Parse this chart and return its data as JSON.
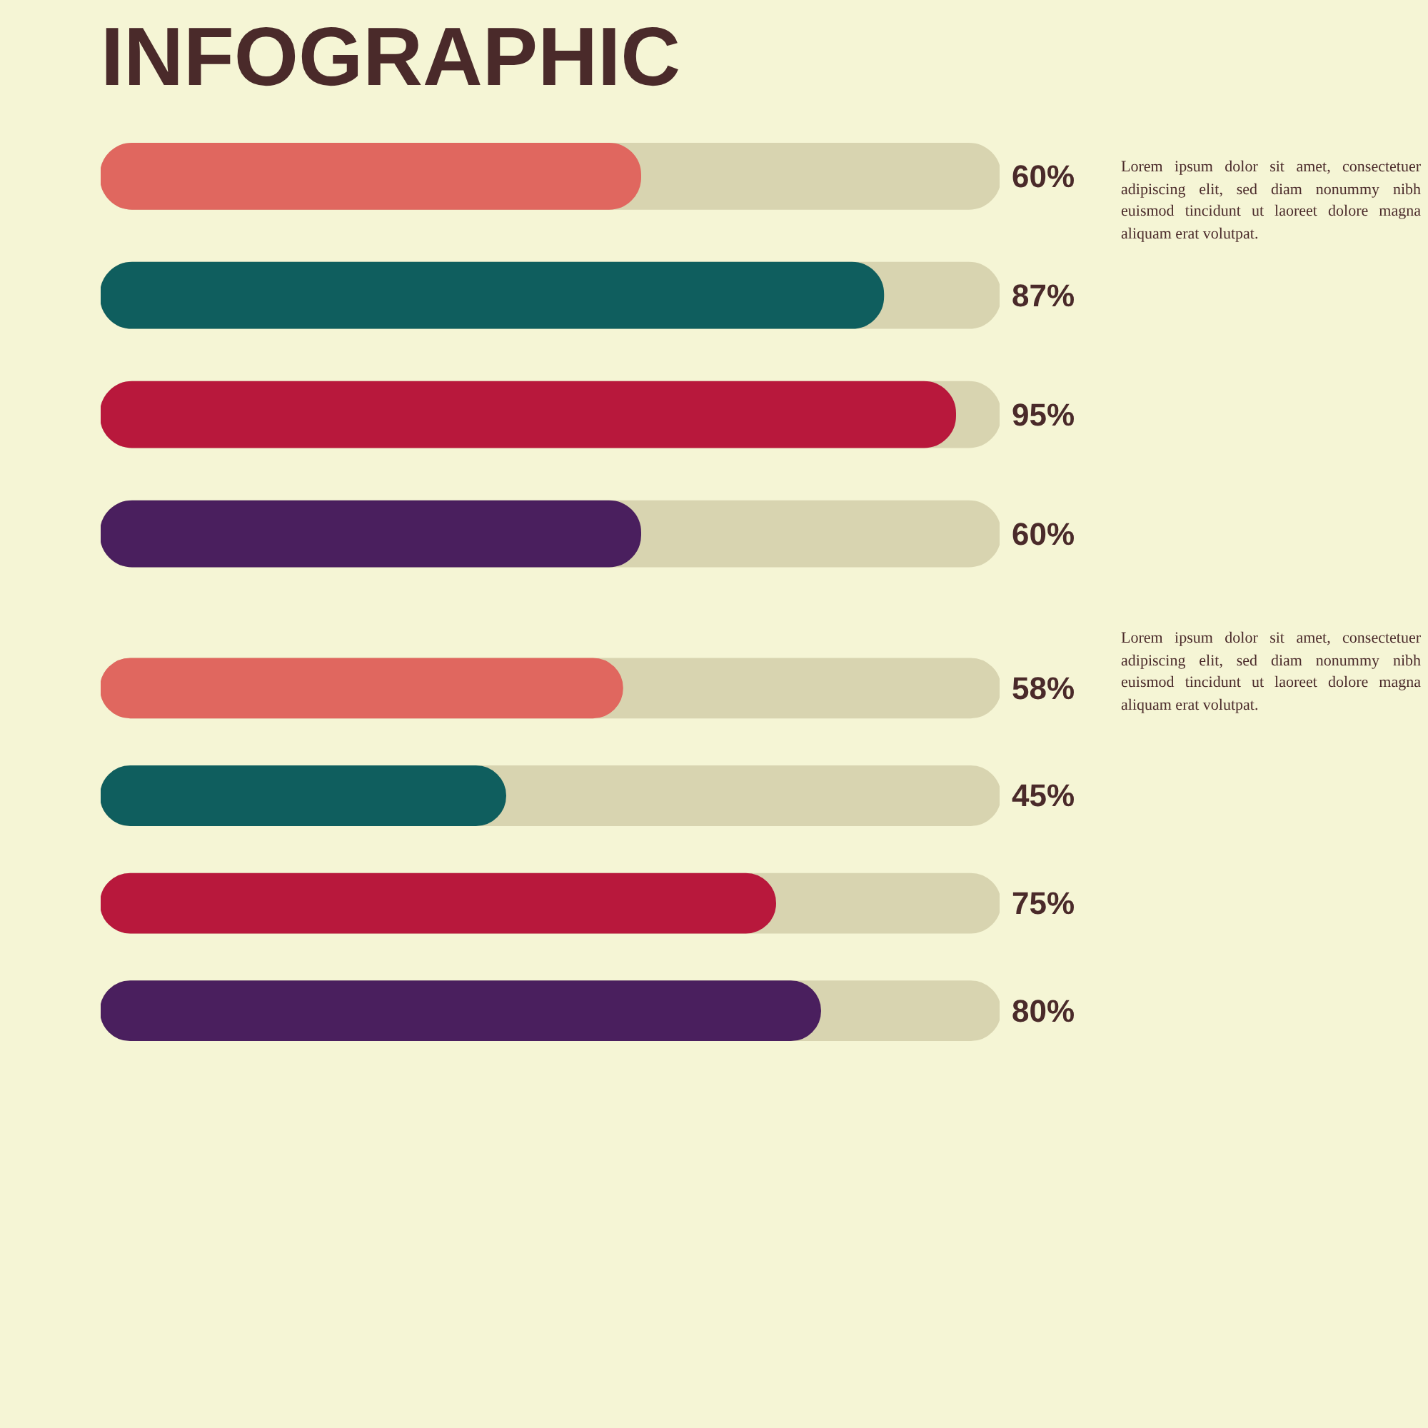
{
  "chart_data": [
    {
      "type": "bar",
      "title": "INFOGRAPHIC",
      "orientation": "horizontal",
      "categories": [
        null,
        null,
        null,
        null
      ],
      "values": [
        60,
        87,
        95,
        60
      ],
      "value_labels": [
        "60%",
        "87%",
        "95%",
        "60%"
      ],
      "colors": [
        "#e0675f",
        "#0f5e5e",
        "#b8183c",
        "#4a1f5e"
      ],
      "xlim": [
        0,
        100
      ],
      "tick_labels": false,
      "annotations": [
        "Lorem ipsum dolor sit amet, consectetuer adipiscing elit, sed diam nonummy nibh euismod tincidunt ut laoreet dolore magna aliquam erat volutpat."
      ]
    },
    {
      "type": "bar",
      "orientation": "horizontal",
      "categories": [
        null,
        null,
        null,
        null
      ],
      "values": [
        58,
        45,
        75,
        80
      ],
      "value_labels": [
        "58%",
        "45%",
        "75%",
        "80%"
      ],
      "colors": [
        "#e0675f",
        "#0f5e5e",
        "#b8183c",
        "#4a1f5e"
      ],
      "xlim": [
        0,
        100
      ],
      "tick_labels": false,
      "annotations": [
        "Lorem ipsum dolor sit amet, consectetuer adipiscing elit, sed diam nonummy nibh euismod tincidunt ut laoreet dolore magna aliquam erat volutpat."
      ]
    }
  ]
}
